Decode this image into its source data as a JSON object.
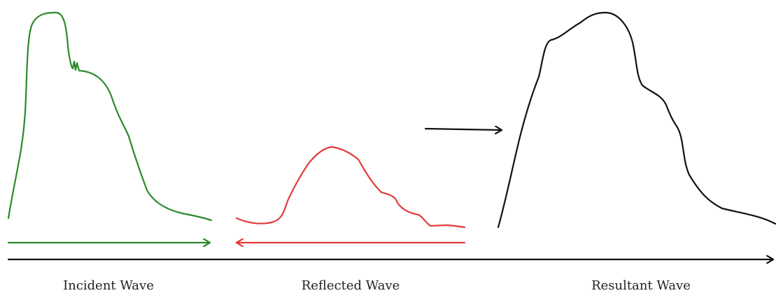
{
  "colors": {
    "incident": "#2b8a2b",
    "reflected": "#e23b3b",
    "resultant": "#111111",
    "axis": "#111111"
  },
  "captions": {
    "incident": "Incident Wave",
    "reflected": "Reflected Wave",
    "resultant": "Resultant Wave"
  },
  "icons": {
    "incident_arrow": "right-arrow-icon",
    "reflected_arrow": "left-arrow-icon",
    "combine_arrow": "right-arrow-icon",
    "axis_arrow": "right-arrow-icon"
  }
}
